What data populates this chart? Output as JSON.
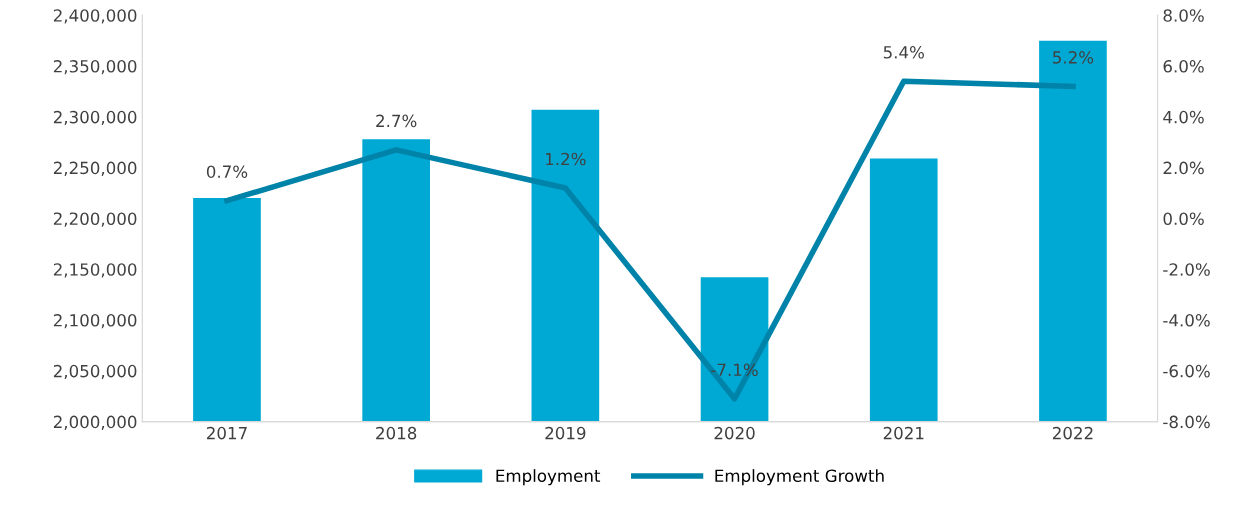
{
  "chart_data": {
    "type": "bar",
    "categories": [
      "2017",
      "2018",
      "2019",
      "2020",
      "2021",
      "2022"
    ],
    "series": [
      {
        "name": "Employment",
        "color": "#00a9d4",
        "values": [
          2220000,
          2278000,
          2307000,
          2142000,
          2259000,
          2375000
        ]
      },
      {
        "name": "Employment Growth",
        "type": "line",
        "axis": "y2",
        "color": "#0083a9",
        "values": [
          0.7,
          2.7,
          1.2,
          -7.1,
          5.4,
          5.2
        ],
        "value_labels": [
          "0.7%",
          "2.7%",
          "1.2%",
          "-7.1%",
          "5.4%",
          "5.2%"
        ]
      }
    ],
    "ylim": [
      2000000,
      2400000
    ],
    "yticks": [
      {
        "value": 2000000,
        "label": "2,000,000"
      },
      {
        "value": 2050000,
        "label": "2,050,000"
      },
      {
        "value": 2100000,
        "label": "2,100,000"
      },
      {
        "value": 2150000,
        "label": "2,150,000"
      },
      {
        "value": 2200000,
        "label": "2,200,000"
      },
      {
        "value": 2250000,
        "label": "2,250,000"
      },
      {
        "value": 2300000,
        "label": "2,300,000"
      },
      {
        "value": 2350000,
        "label": "2,350,000"
      },
      {
        "value": 2400000,
        "label": "2,400,000"
      }
    ],
    "y2lim": [
      -8,
      8
    ],
    "y2ticks": [
      {
        "value": -8,
        "label": "-8.0%"
      },
      {
        "value": -6,
        "label": "-6.0%"
      },
      {
        "value": -4,
        "label": "-4.0%"
      },
      {
        "value": -2,
        "label": "-2.0%"
      },
      {
        "value": 0,
        "label": "0.0%"
      },
      {
        "value": 2,
        "label": "2.0%"
      },
      {
        "value": 4,
        "label": "4.0%"
      },
      {
        "value": 6,
        "label": "6.0%"
      },
      {
        "value": 8,
        "label": "8.0%"
      }
    ],
    "legend": "bottom",
    "grid": false,
    "marker": "none",
    "line_style": "solid"
  }
}
